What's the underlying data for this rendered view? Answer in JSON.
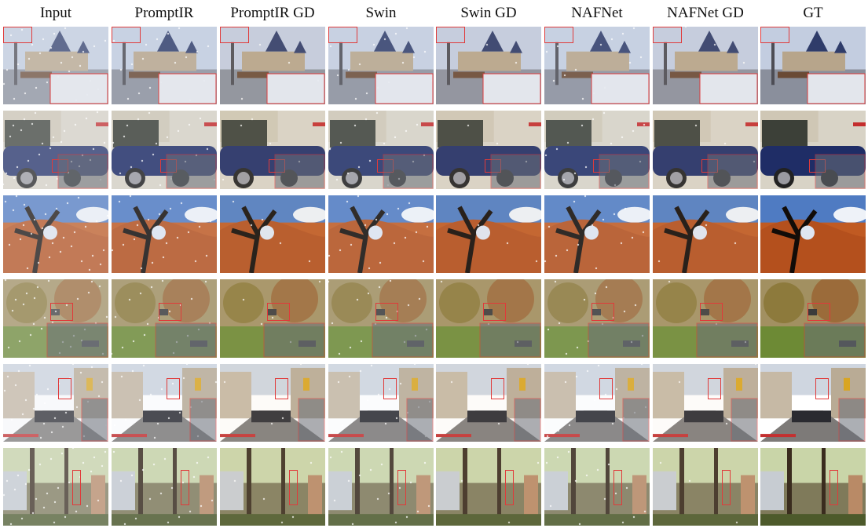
{
  "figure": {
    "columns": [
      "Input",
      "PromptIR",
      "PromptIR GD",
      "Swin",
      "Swin GD",
      "NAFNet",
      "NAFNet GD",
      "GT"
    ]
  },
  "rows": [
    {
      "scene": "castle-snow",
      "sky": "#c3cde0",
      "ground": "#8a8f9c",
      "accent": "#6a4a35"
    },
    {
      "scene": "blue-car",
      "sky": "#d8d3c6",
      "ground": "#b8b3a8",
      "accent": "#1f2d66"
    },
    {
      "scene": "desert-tree",
      "sky": "#4f7bc2",
      "ground": "#c05a22",
      "accent": "#120c08"
    },
    {
      "scene": "autumn-garden",
      "sky": "#a29061",
      "ground": "#6d8a35",
      "accent": "#3b3b3b"
    },
    {
      "scene": "street",
      "sky": "#cfd6e0",
      "ground": "#7d7a78",
      "accent": "#d9a521"
    },
    {
      "scene": "park-trees",
      "sky": "#c9d5a8",
      "ground": "#7f7a5a",
      "accent": "#3a2c1e"
    }
  ],
  "colors": {
    "zoom_box": "#e03a3a",
    "degradation": "#ffffff"
  }
}
